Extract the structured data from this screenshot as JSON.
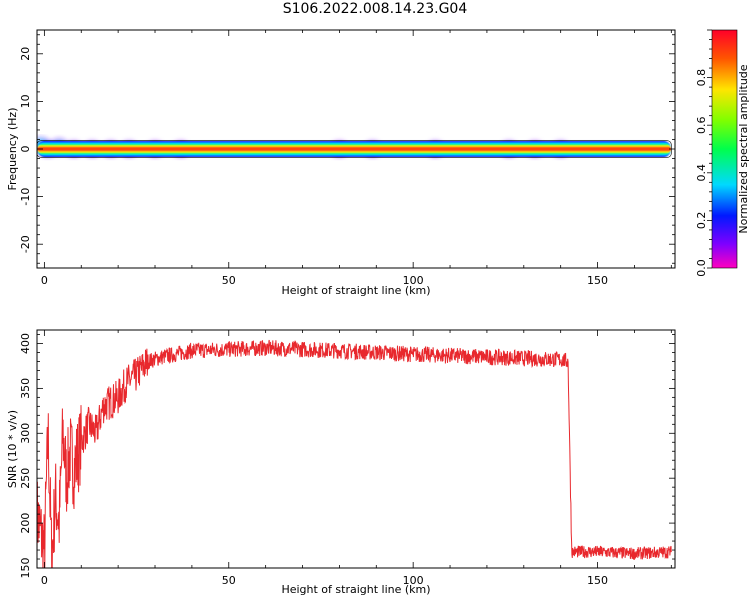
{
  "figure": {
    "title": "S106.2022.008.14.23.G04"
  },
  "chart_data": [
    {
      "type": "heatmap",
      "xlabel": "Height of straight line (km)",
      "ylabel": "Frequency (Hz)",
      "xlim": [
        -2,
        171
      ],
      "ylim": [
        -25,
        25
      ],
      "xticks": [
        0,
        50,
        100,
        150
      ],
      "yticks": [
        -20,
        -10,
        0,
        10,
        20
      ],
      "x_extent": [
        -2,
        170
      ],
      "dominant_band": {
        "frequency_hz": 0,
        "normalized_amplitude": 0.9
      },
      "blobs": [
        {
          "x": -1,
          "y": 0.8,
          "value": 0.35
        },
        {
          "x": 1,
          "y": 0,
          "value": 0.3
        },
        {
          "x": 4,
          "y": 0.5,
          "value": 0.3
        },
        {
          "x": 8,
          "y": 0,
          "value": 0.25
        },
        {
          "x": 13,
          "y": 0,
          "value": 0.25
        },
        {
          "x": 18,
          "y": 0,
          "value": 0.25
        },
        {
          "x": 23,
          "y": 0,
          "value": 0.25
        },
        {
          "x": 30,
          "y": 0,
          "value": 0.2
        },
        {
          "x": 37,
          "y": 0,
          "value": 0.2
        },
        {
          "x": 80,
          "y": 0,
          "value": 0.2
        },
        {
          "x": 89,
          "y": 0,
          "value": 0.25
        },
        {
          "x": 106,
          "y": 0,
          "value": 0.25
        },
        {
          "x": 126,
          "y": 0,
          "value": 0.25
        },
        {
          "x": 133,
          "y": 0,
          "value": 0.2
        },
        {
          "x": 140,
          "y": 0,
          "value": 0.25
        }
      ],
      "colorbar": {
        "label": "Normalized spectral amplitude",
        "range": [
          0,
          1
        ],
        "ticks": [
          "0.0",
          "0.2",
          "0.4",
          "0.6",
          "0.8"
        ],
        "colormap": "gist_rainbow_r"
      }
    },
    {
      "type": "line",
      "xlabel": "Height of straight line (km)",
      "ylabel": "SNR (10 * v/v)",
      "xlim": [
        -2,
        171
      ],
      "ylim": [
        150,
        415
      ],
      "xticks": [
        0,
        50,
        100,
        150
      ],
      "yticks": [
        150,
        200,
        250,
        300,
        350,
        400
      ],
      "series": [
        {
          "color": "#e8282d",
          "points": [
            [
              -2,
              210
            ],
            [
              0,
              170
            ],
            [
              1,
              300
            ],
            [
              2,
              160
            ],
            [
              3,
              230
            ],
            [
              4,
              200
            ],
            [
              5,
              300
            ],
            [
              6,
              250
            ],
            [
              7,
              280
            ],
            [
              8,
              260
            ],
            [
              10,
              290
            ],
            [
              12,
              310
            ],
            [
              14,
              300
            ],
            [
              16,
              330
            ],
            [
              18,
              335
            ],
            [
              20,
              340
            ],
            [
              22,
              355
            ],
            [
              25,
              365
            ],
            [
              28,
              380
            ],
            [
              32,
              385
            ],
            [
              40,
              392
            ],
            [
              60,
              395
            ],
            [
              80,
              392
            ],
            [
              100,
              388
            ],
            [
              120,
              385
            ],
            [
              140,
              382
            ],
            [
              142,
              380
            ],
            [
              143,
              168
            ],
            [
              150,
              168
            ],
            [
              160,
              166
            ],
            [
              170,
              168
            ]
          ]
        }
      ]
    }
  ]
}
